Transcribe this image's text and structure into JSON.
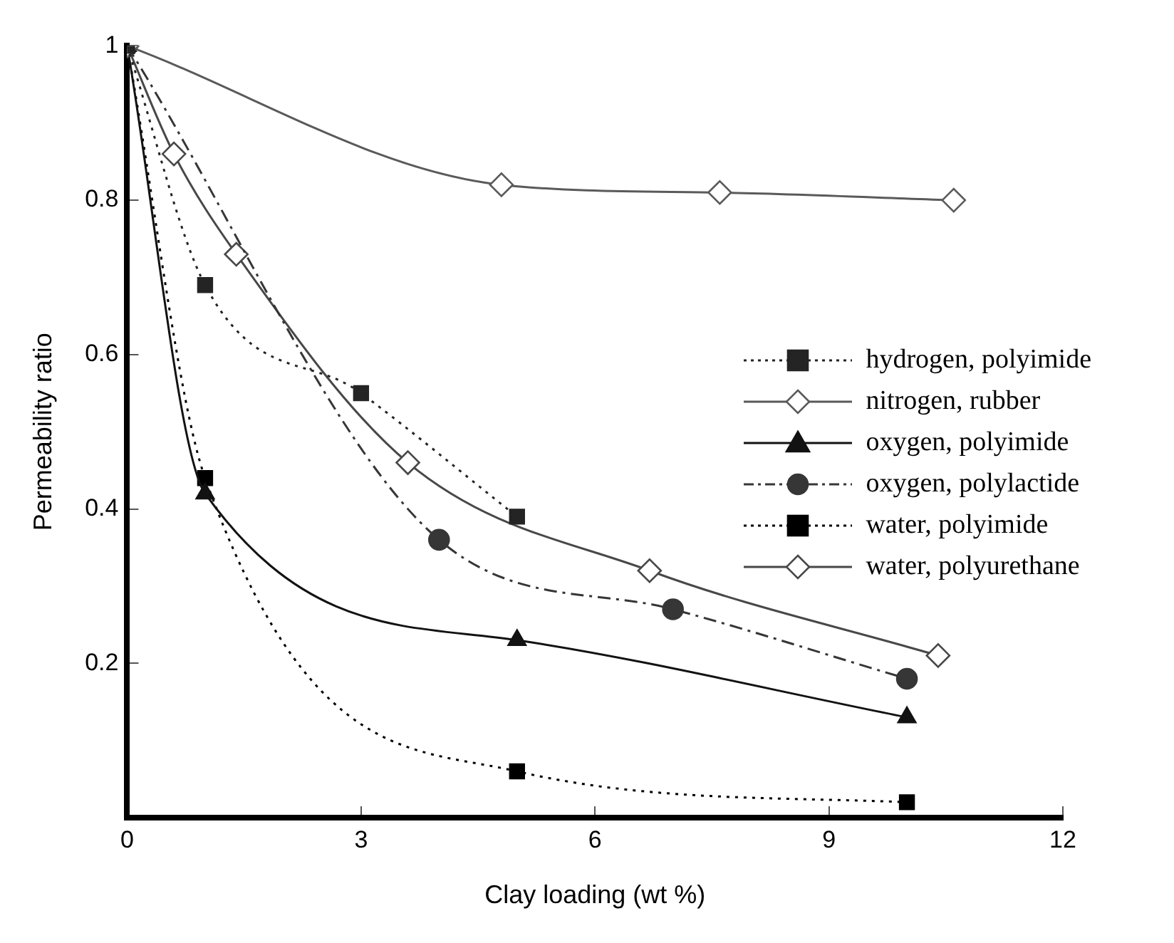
{
  "chart_data": {
    "type": "line",
    "xlabel": "Clay loading (wt %)",
    "ylabel": "Permeability ratio",
    "xlim": [
      0,
      12
    ],
    "xticks": [
      0,
      3,
      6,
      9,
      12
    ],
    "ylim": [
      0,
      1
    ],
    "yticks": [
      0.2,
      0.4,
      0.6,
      0.8,
      1
    ],
    "grid": false,
    "legend": "right",
    "series": [
      {
        "name": "hydrogen, polyimide",
        "color": "#242424",
        "marker": "square",
        "line_style": "dotted",
        "x": [
          0,
          1,
          3,
          5
        ],
        "values": [
          1,
          0.69,
          0.55,
          0.39
        ]
      },
      {
        "name": "nitrogen, rubber",
        "color": "#5a5a5a",
        "marker": "diamond",
        "line_style": "solid",
        "x": [
          0,
          4.8,
          7.6,
          10.6
        ],
        "values": [
          1,
          0.82,
          0.81,
          0.8
        ]
      },
      {
        "name": "oxygen, polyimide",
        "color": "#121212",
        "marker": "triangle",
        "line_style": "solid",
        "x": [
          0,
          1,
          5,
          10
        ],
        "values": [
          1,
          0.42,
          0.23,
          0.13
        ]
      },
      {
        "name": "oxygen, polylactide",
        "color": "#363636",
        "marker": "circle",
        "line_style": "dashed",
        "x": [
          0,
          4,
          7,
          10
        ],
        "values": [
          1,
          0.36,
          0.27,
          0.18
        ]
      },
      {
        "name": "water, polyimide",
        "color": "#000000",
        "marker": "square",
        "line_style": "dotted",
        "x": [
          0,
          1,
          5,
          10
        ],
        "values": [
          1,
          0.44,
          0.06,
          0.02
        ]
      },
      {
        "name": "water, polyurethane",
        "color": "#484848",
        "marker": "diamond",
        "line_style": "solid",
        "x": [
          0,
          0.6,
          1.4,
          3.6,
          6.7,
          10.4
        ],
        "values": [
          1,
          0.86,
          0.73,
          0.46,
          0.32,
          0.21
        ]
      }
    ]
  }
}
